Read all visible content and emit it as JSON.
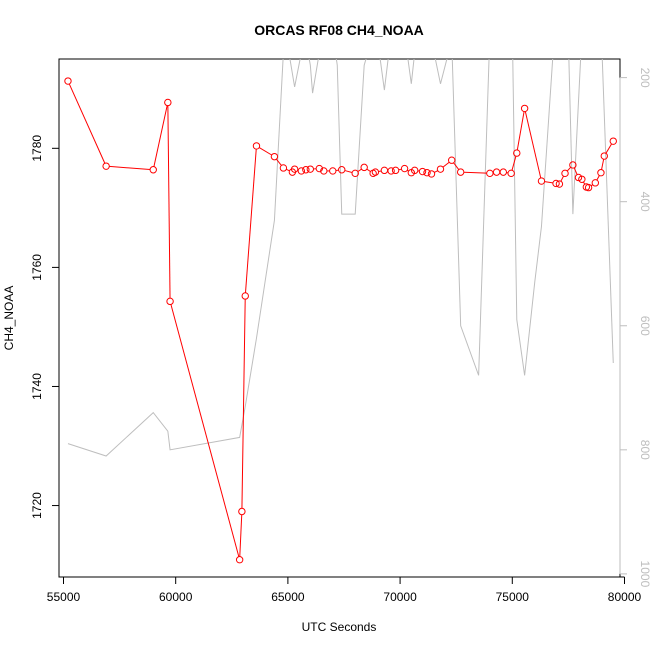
{
  "chart_data": {
    "type": "line",
    "title": "ORCAS RF08 CH4_NOAA",
    "xlabel": "UTC Seconds",
    "ylabel": "CH4_NOAA",
    "xlim": [
      54800,
      79800
    ],
    "ylim": [
      1708,
      1795
    ],
    "xticks": [
      55000,
      60000,
      65000,
      70000,
      75000,
      80000
    ],
    "yticks": [
      1720,
      1740,
      1760,
      1780
    ],
    "right_axis": {
      "ylim": [
        1005,
        170
      ],
      "ticks": [
        200,
        400,
        600,
        800,
        1000
      ],
      "color": "#bebebe"
    },
    "grid": false,
    "legend": "none",
    "series": [
      {
        "color": "#ff0000",
        "marker": "open-circle",
        "x": [
          55200,
          56900,
          59000,
          59650,
          59750,
          62850,
          62950,
          63100,
          63600,
          64400,
          64800,
          65200,
          65300,
          65600,
          65800,
          66000,
          66400,
          66600,
          67000,
          67400,
          68000,
          68400,
          68800,
          68900,
          69300,
          69600,
          69800,
          70200,
          70500,
          70650,
          71000,
          71200,
          71400,
          71800,
          72300,
          72700,
          74000,
          74300,
          74600,
          74950,
          75200,
          75550,
          76300,
          76950,
          77100,
          77350,
          77700,
          77950,
          78100,
          78300,
          78400,
          78700,
          78950,
          79100,
          79500
        ],
        "y": [
          1791.3,
          1777.0,
          1776.4,
          1787.7,
          1754.3,
          1710.9,
          1719.0,
          1755.2,
          1780.4,
          1778.6,
          1776.7,
          1776.0,
          1776.5,
          1776.2,
          1776.4,
          1776.5,
          1776.6,
          1776.2,
          1776.2,
          1776.4,
          1775.8,
          1776.8,
          1775.8,
          1776.0,
          1776.3,
          1776.2,
          1776.3,
          1776.6,
          1775.9,
          1776.3,
          1776.1,
          1775.9,
          1775.7,
          1776.5,
          1778.0,
          1776.0,
          1775.8,
          1776.0,
          1776.0,
          1775.8,
          1779.2,
          1786.7,
          1774.5,
          1774.1,
          1774.0,
          1775.8,
          1777.2,
          1775.1,
          1774.8,
          1773.5,
          1773.4,
          1774.2,
          1775.9,
          1778.7,
          1781.2
        ]
      },
      {
        "color": "#bebebe",
        "axis": "right",
        "marker": "none",
        "x": [
          55200,
          56900,
          59000,
          59650,
          59750,
          62850,
          63100,
          63600,
          64400,
          64800,
          65000,
          65300,
          65600,
          65800,
          66000,
          66100,
          66400,
          66600,
          67000,
          67200,
          67400,
          68000,
          68400,
          68800,
          69000,
          69300,
          69500,
          69800,
          70200,
          70500,
          70650,
          71000,
          71400,
          71800,
          72300,
          72700,
          73500,
          74000,
          74300,
          74600,
          75000,
          75200,
          75550,
          76000,
          76300,
          76800,
          77200,
          77500,
          77700,
          78100,
          78500,
          79000,
          79500
        ],
        "y": [
          790,
          810,
          740,
          770,
          800,
          780,
          730,
          620,
          430,
          160,
          150,
          215,
          160,
          140,
          180,
          225,
          160,
          140,
          130,
          180,
          420,
          420,
          180,
          130,
          140,
          220,
          160,
          140,
          130,
          210,
          160,
          140,
          140,
          210,
          140,
          600,
          680,
          130,
          110,
          130,
          120,
          590,
          680,
          530,
          440,
          170,
          150,
          140,
          420,
          130,
          130,
          160,
          660
        ]
      }
    ]
  }
}
